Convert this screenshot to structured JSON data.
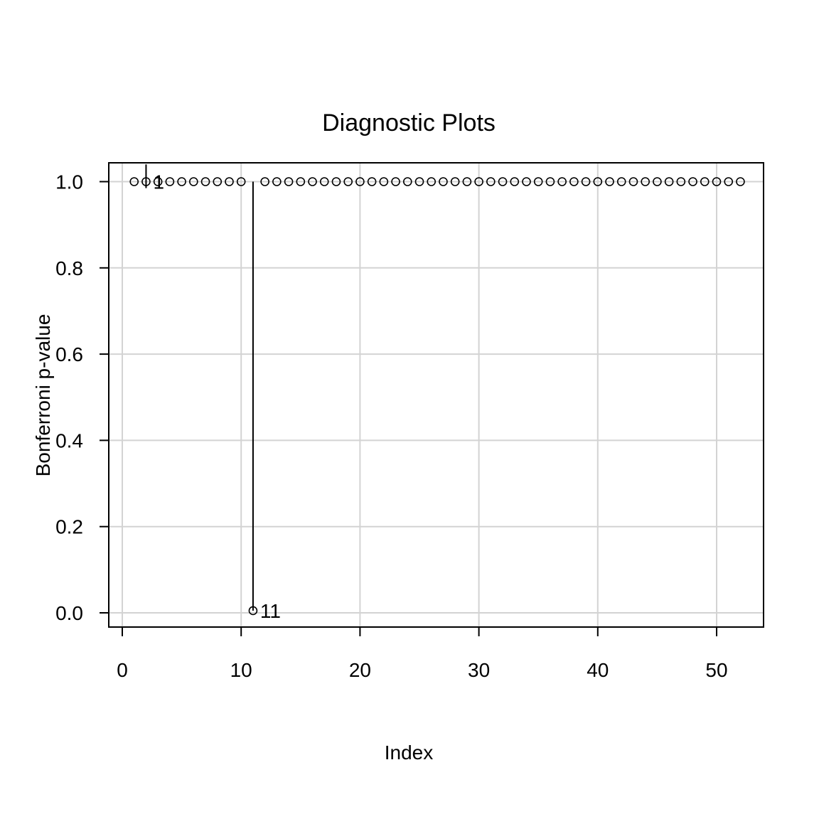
{
  "chart_data": {
    "type": "scatter",
    "title": "Diagnostic Plots",
    "xlabel": "Index",
    "ylabel": "Bonferroni p-value",
    "xlim": [
      0,
      54
    ],
    "ylim": [
      0,
      1.04
    ],
    "xticks": [
      0,
      10,
      20,
      30,
      40,
      50
    ],
    "xtick_labels": [
      "0",
      "10",
      "20",
      "30",
      "40",
      "50"
    ],
    "yticks": [
      0.0,
      0.2,
      0.4,
      0.6,
      0.8,
      1.0
    ],
    "ytick_labels": [
      "0.0",
      "0.2",
      "0.4",
      "0.6",
      "0.8",
      "1.0"
    ],
    "grid": true,
    "series": [
      {
        "x": [
          1,
          2,
          3,
          4,
          5,
          6,
          7,
          8,
          9,
          10,
          11,
          12,
          13,
          14,
          15,
          16,
          17,
          18,
          19,
          20,
          21,
          22,
          23,
          24,
          25,
          26,
          27,
          28,
          29,
          30,
          31,
          32,
          33,
          34,
          35,
          36,
          37,
          38,
          39,
          40,
          41,
          42,
          43,
          44,
          45,
          46,
          47,
          48,
          49,
          50,
          51,
          52
        ],
        "values": [
          1,
          1,
          1,
          1,
          1,
          1,
          1,
          1,
          1,
          1,
          0.005,
          1,
          1,
          1,
          1,
          1,
          1,
          1,
          1,
          1,
          1,
          1,
          1,
          1,
          1,
          1,
          1,
          1,
          1,
          1,
          1,
          1,
          1,
          1,
          1,
          1,
          1,
          1,
          1,
          1,
          1,
          1,
          1,
          1,
          1,
          1,
          1,
          1,
          1,
          1,
          1,
          1
        ]
      }
    ],
    "vertical_lines": [
      {
        "x": 2,
        "from": 0.985,
        "to": 1.04
      },
      {
        "x": 11,
        "from": 0.005,
        "to": 1.0
      }
    ],
    "annotations": [
      {
        "x": 2,
        "y": 1.0,
        "text": "1"
      },
      {
        "x": 11,
        "y": 0.005,
        "text": "11"
      }
    ]
  }
}
